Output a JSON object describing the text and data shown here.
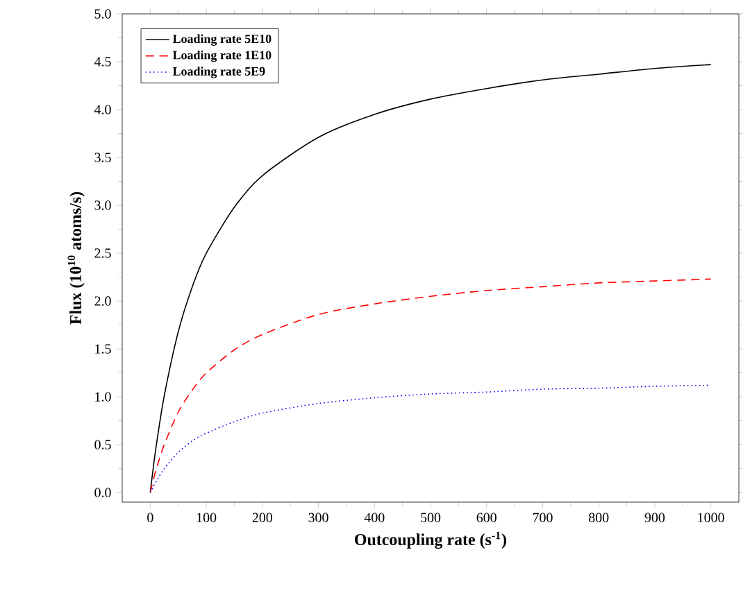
{
  "chart_data": {
    "type": "line",
    "xlabel": "Outcoupling rate (s$^{-1}$)",
    "ylabel": "Flux (10$^{10}$ atoms/s)",
    "x": [
      0,
      10,
      25,
      50,
      75,
      100,
      150,
      200,
      300,
      400,
      500,
      600,
      700,
      800,
      900,
      1000
    ],
    "series": [
      {
        "name": "Loading rate 5E10",
        "color": "#000000",
        "line_style": "solid",
        "values": [
          0,
          0.46,
          1.01,
          1.68,
          2.15,
          2.5,
          2.98,
          3.31,
          3.71,
          3.95,
          4.11,
          4.22,
          4.31,
          4.37,
          4.43,
          4.47
        ]
      },
      {
        "name": "Loading rate 1E10",
        "color": "#ff0000",
        "line_style": "dashed",
        "values": [
          0,
          0.23,
          0.5,
          0.84,
          1.07,
          1.25,
          1.49,
          1.65,
          1.86,
          1.97,
          2.05,
          2.11,
          2.15,
          2.19,
          2.21,
          2.23
        ]
      },
      {
        "name": "Loading rate 5E9",
        "color": "#0000ff",
        "line_style": "dotted",
        "values": [
          0,
          0.11,
          0.25,
          0.42,
          0.54,
          0.62,
          0.74,
          0.83,
          0.93,
          0.99,
          1.03,
          1.05,
          1.08,
          1.09,
          1.11,
          1.12
        ]
      }
    ],
    "xlim": [
      -50,
      1050
    ],
    "ylim": [
      -0.1,
      5.0
    ],
    "xticks": [
      0,
      100,
      200,
      300,
      400,
      500,
      600,
      700,
      800,
      900,
      1000
    ],
    "yticks": [
      {
        "value": 0,
        "label": "0.0"
      },
      {
        "value": 0.5,
        "label": "0.5"
      },
      {
        "value": 1,
        "label": "1.0"
      },
      {
        "value": 1.5,
        "label": "1.5"
      },
      {
        "value": 2,
        "label": "2.0"
      },
      {
        "value": 2.5,
        "label": "2.5"
      },
      {
        "value": 3,
        "label": "3.0"
      },
      {
        "value": 3.5,
        "label": "3.5"
      },
      {
        "value": 4,
        "label": "4.0"
      },
      {
        "value": 4.5,
        "label": "4.5"
      },
      {
        "value": 5,
        "label": "5.0"
      }
    ],
    "grid": false,
    "legend": "top left"
  }
}
